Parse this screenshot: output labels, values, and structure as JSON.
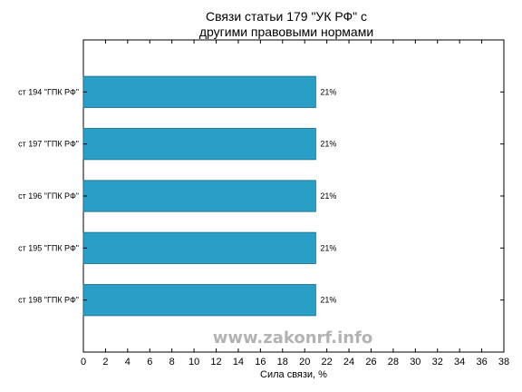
{
  "chart_data": {
    "type": "bar",
    "orientation": "horizontal",
    "title": "Связи статьи 179 \"УК РФ\" с\nдругими правовыми нормами",
    "categories": [
      "ст 194 \"ГПК РФ\"",
      "ст 197 \"ГПК РФ\"",
      "ст 196 \"ГПК РФ\"",
      "ст 195 \"ГПК РФ\"",
      "ст 198 \"ГПК РФ\""
    ],
    "values": [
      21,
      21,
      21,
      21,
      21
    ],
    "data_labels": [
      "21%",
      "21%",
      "21%",
      "21%",
      "21%"
    ],
    "xlabel": "Сила связи, %",
    "ylabel": "",
    "xlim": [
      0,
      38
    ],
    "xticks": [
      "0",
      "2",
      "4",
      "6",
      "8",
      "10",
      "12",
      "14",
      "16",
      "18",
      "20",
      "22",
      "24",
      "26",
      "28",
      "30",
      "32",
      "34",
      "36",
      "38"
    ],
    "grid": false,
    "bar_color": "#2a9ec6",
    "bar_edge_color": "#1d6f8a"
  },
  "watermark": "www.zakonrf.info"
}
